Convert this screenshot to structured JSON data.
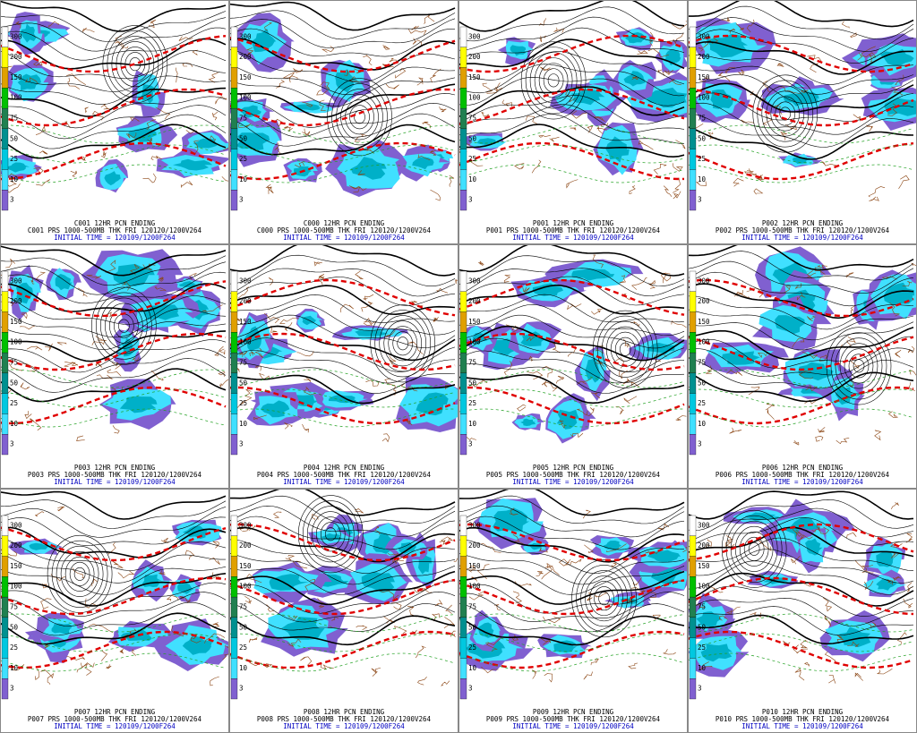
{
  "panels": [
    {
      "title": "C001 12HR PCN ENDING",
      "subtitle": "C001 PRS 1000-500MB THK FRI 120120/1200V264",
      "init": "INITIAL TIME = 120109/1200F264"
    },
    {
      "title": "C000 12HR PCN ENDING",
      "subtitle": "C000 PRS 1000-500MB THK FRI 120120/1200V264",
      "init": "INITIAL TIME = 120109/1200F264"
    },
    {
      "title": "P001 12HR PCN ENDING",
      "subtitle": "P001 PRS 1000-500MB THK FRI 120120/1200V264",
      "init": "INITIAL TIME = 120109/1200F264"
    },
    {
      "title": "P002 12HR PCN ENDING",
      "subtitle": "P002 PRS 1000-500MB THK FRI 120120/1200V264",
      "init": "INITIAL TIME = 120109/1200F264"
    },
    {
      "title": "P003 12HR PCN ENDING",
      "subtitle": "P003 PRS 1000-500MB THK FRI 120120/1200V264",
      "init": "INITIAL TIME = 120109/1200F264"
    },
    {
      "title": "P004 12HR PCN ENDING",
      "subtitle": "P004 PRS 1000-500MB THK FRI 120120/1200V264",
      "init": "INITIAL TIME = 120109/1200F264"
    },
    {
      "title": "P005 12HR PCN ENDING",
      "subtitle": "P005 PRS 1000-500MB THK FRI 120120/1200V264",
      "init": "INITIAL TIME = 120109/1200F264"
    },
    {
      "title": "P006 12HR PCN ENDING",
      "subtitle": "P006 PRS 1000-500MB THK FRI 120120/1200V264",
      "init": "INITIAL TIME = 120109/1200F264"
    },
    {
      "title": "P007 12HR PCN ENDING",
      "subtitle": "P007 PRS 1000-500MB THK FRI 120120/1200V264",
      "init": "INITIAL TIME = 120109/1200F264"
    },
    {
      "title": "P008 12HR PCN ENDING",
      "subtitle": "P008 PRS 1000-500MB THK FRI 120120/1200V264",
      "init": "INITIAL TIME = 120109/1200F264"
    },
    {
      "title": "P009 12HR PCN ENDING",
      "subtitle": "P009 PRS 1000-500MB THK FRI 120120/1200V264",
      "init": "INITIAL TIME = 120109/1200F264"
    },
    {
      "title": "P010 12HR PCN ENDING",
      "subtitle": "P010 PRS 1000-500MB THK FRI 120120/1200V264",
      "init": "INITIAL TIME = 120109/1200F264"
    }
  ],
  "legend": {
    "ticks": [
      "300",
      "200",
      "150",
      "100",
      "75",
      "50",
      "25",
      "10",
      "3"
    ],
    "colors": [
      "#ffffff",
      "#ffff00",
      "#e0a000",
      "#00c000",
      "#208050",
      "#009090",
      "#00c8e0",
      "#40e0ff",
      "#8060d0"
    ]
  }
}
